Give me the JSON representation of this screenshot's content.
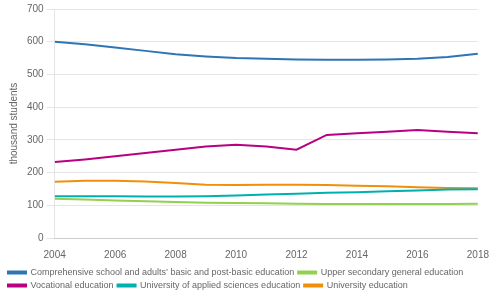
{
  "chart_data": {
    "type": "line",
    "ylabel": "thousand students",
    "x": [
      2004,
      2005,
      2006,
      2007,
      2008,
      2009,
      2010,
      2011,
      2012,
      2013,
      2014,
      2015,
      2016,
      2017,
      2018
    ],
    "series": [
      {
        "name": "Comprehensive school and adults’ basic and post-basic education",
        "color": "#2e75b6",
        "values": [
          600,
          592,
          582,
          572,
          562,
          555,
          550,
          548,
          546,
          545,
          545,
          546,
          548,
          553,
          563
        ]
      },
      {
        "name": "Upper secondary general education",
        "color": "#92d050",
        "values": [
          120,
          118,
          115,
          112,
          110,
          108,
          107,
          106,
          105,
          104,
          104,
          104,
          104,
          104,
          105
        ]
      },
      {
        "name": "Vocational education",
        "color": "#b80080",
        "values": [
          232,
          240,
          250,
          260,
          270,
          280,
          285,
          280,
          270,
          315,
          320,
          325,
          330,
          325,
          320
        ]
      },
      {
        "name": "University of applied sciences education",
        "color": "#00b0b0",
        "values": [
          128,
          128,
          128,
          127,
          127,
          128,
          130,
          133,
          135,
          138,
          140,
          143,
          145,
          148,
          149
        ]
      },
      {
        "name": "University education",
        "color": "#f0900a",
        "values": [
          172,
          175,
          175,
          173,
          168,
          163,
          162,
          163,
          163,
          162,
          160,
          158,
          155,
          153,
          152
        ]
      }
    ],
    "xlim": [
      2004,
      2018
    ],
    "xticks": [
      2004,
      2006,
      2008,
      2010,
      2012,
      2014,
      2016,
      2018
    ],
    "ylim": [
      0,
      700
    ],
    "yticks": [
      0,
      100,
      200,
      300,
      400,
      500,
      600,
      700
    ],
    "grid": true,
    "legend": "bottom"
  }
}
